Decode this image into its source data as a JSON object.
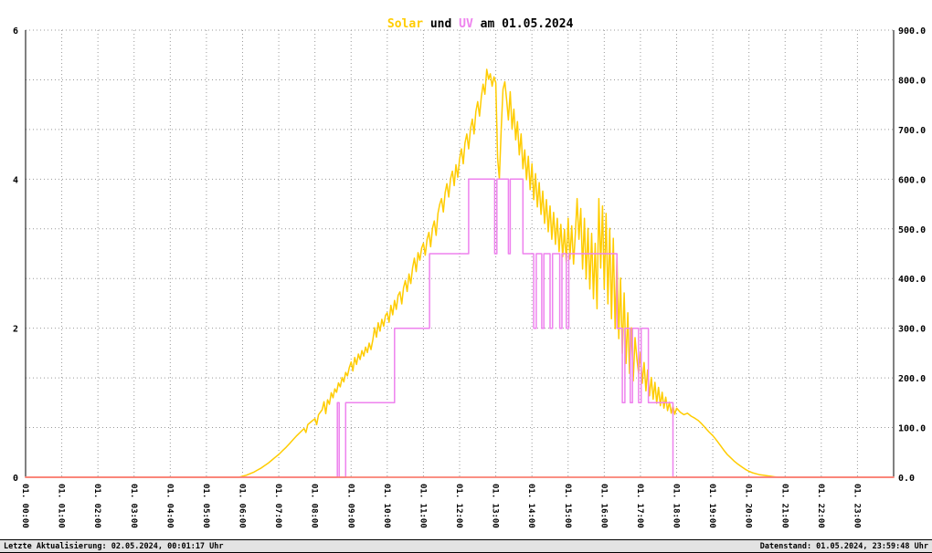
{
  "title": {
    "solar": "Solar",
    "und": " und ",
    "uv": "UV",
    "date": " am 01.05.2024"
  },
  "footer": {
    "left": "Letzte Aktualisierung: 02.05.2024, 00:01:17 Uhr",
    "right": "Datenstand: 01.05.2024, 23:59:48 Uhr"
  },
  "chart_data": {
    "type": "line",
    "title": "Solar und UV am 01.05.2024",
    "grid": true,
    "xlim": [
      0,
      24
    ],
    "x_tick_labels": [
      "01. 00:00",
      "01. 01:00",
      "01. 02:00",
      "01. 03:00",
      "01. 04:00",
      "01. 05:00",
      "01. 06:00",
      "01. 07:00",
      "01. 08:00",
      "01. 09:00",
      "01. 10:00",
      "01. 11:00",
      "01. 12:00",
      "01. 13:00",
      "01. 14:00",
      "01. 15:00",
      "01. 16:00",
      "01. 17:00",
      "01. 18:00",
      "01. 19:00",
      "01. 20:00",
      "01. 21:00",
      "01. 22:00",
      "01. 23:00"
    ],
    "left_axis": {
      "ylim": [
        0,
        6
      ],
      "tick_labels": [
        "6",
        "4",
        "2",
        "0"
      ]
    },
    "right_axis": {
      "ylim": [
        0,
        900
      ],
      "tick_labels": [
        "900.0",
        "800.0",
        "700.0",
        "600.0",
        "500.0",
        "400.0",
        "300.0",
        "200.0",
        "100.0",
        "0.0"
      ]
    },
    "colors": {
      "solar": "#FFCC00",
      "uv": "#EE82EE",
      "baseline": "#FA8072"
    },
    "series": [
      {
        "name": "Solar",
        "axis": "right",
        "type": "line",
        "color": "#FFCC00",
        "points": [
          [
            0,
            0
          ],
          [
            1,
            0
          ],
          [
            2,
            0
          ],
          [
            3,
            0
          ],
          [
            4,
            0
          ],
          [
            5,
            0
          ],
          [
            5.9,
            0
          ],
          [
            6,
            2
          ],
          [
            6.1,
            4
          ],
          [
            6.2,
            7
          ],
          [
            6.3,
            10
          ],
          [
            6.4,
            14
          ],
          [
            6.5,
            18
          ],
          [
            6.6,
            23
          ],
          [
            6.7,
            28
          ],
          [
            6.8,
            34
          ],
          [
            6.9,
            40
          ],
          [
            7,
            46
          ],
          [
            7.1,
            53
          ],
          [
            7.2,
            60
          ],
          [
            7.3,
            68
          ],
          [
            7.4,
            76
          ],
          [
            7.5,
            84
          ],
          [
            7.6,
            91
          ],
          [
            7.7,
            98
          ],
          [
            7.75,
            90
          ],
          [
            7.8,
            106
          ],
          [
            7.9,
            112
          ],
          [
            8,
            118
          ],
          [
            8.05,
            106
          ],
          [
            8.1,
            126
          ],
          [
            8.2,
            136
          ],
          [
            8.25,
            152
          ],
          [
            8.3,
            128
          ],
          [
            8.35,
            156
          ],
          [
            8.4,
            147
          ],
          [
            8.45,
            170
          ],
          [
            8.5,
            160
          ],
          [
            8.55,
            178
          ],
          [
            8.6,
            171
          ],
          [
            8.65,
            190
          ],
          [
            8.7,
            182
          ],
          [
            8.75,
            201
          ],
          [
            8.8,
            192
          ],
          [
            8.85,
            211
          ],
          [
            8.9,
            204
          ],
          [
            8.95,
            221
          ],
          [
            9,
            232
          ],
          [
            9.05,
            214
          ],
          [
            9.1,
            241
          ],
          [
            9.15,
            227
          ],
          [
            9.2,
            248
          ],
          [
            9.25,
            237
          ],
          [
            9.3,
            255
          ],
          [
            9.35,
            244
          ],
          [
            9.4,
            262
          ],
          [
            9.45,
            251
          ],
          [
            9.5,
            270
          ],
          [
            9.55,
            257
          ],
          [
            9.6,
            276
          ],
          [
            9.65,
            301
          ],
          [
            9.7,
            282
          ],
          [
            9.75,
            311
          ],
          [
            9.8,
            294
          ],
          [
            9.85,
            318
          ],
          [
            9.9,
            304
          ],
          [
            9.95,
            326
          ],
          [
            10,
            331
          ],
          [
            10.05,
            312
          ],
          [
            10.1,
            346
          ],
          [
            10.15,
            327
          ],
          [
            10.2,
            356
          ],
          [
            10.25,
            338
          ],
          [
            10.3,
            366
          ],
          [
            10.35,
            373
          ],
          [
            10.4,
            349
          ],
          [
            10.45,
            381
          ],
          [
            10.5,
            396
          ],
          [
            10.55,
            374
          ],
          [
            10.6,
            409
          ],
          [
            10.65,
            390
          ],
          [
            10.7,
            421
          ],
          [
            10.75,
            441
          ],
          [
            10.8,
            414
          ],
          [
            10.85,
            452
          ],
          [
            10.9,
            437
          ],
          [
            10.95,
            461
          ],
          [
            11,
            471
          ],
          [
            11.05,
            447
          ],
          [
            11.1,
            479
          ],
          [
            11.15,
            493
          ],
          [
            11.2,
            464
          ],
          [
            11.25,
            501
          ],
          [
            11.3,
            516
          ],
          [
            11.35,
            487
          ],
          [
            11.4,
            531
          ],
          [
            11.45,
            549
          ],
          [
            11.5,
            561
          ],
          [
            11.55,
            534
          ],
          [
            11.6,
            573
          ],
          [
            11.65,
            591
          ],
          [
            11.7,
            564
          ],
          [
            11.75,
            601
          ],
          [
            11.8,
            616
          ],
          [
            11.85,
            587
          ],
          [
            11.9,
            629
          ],
          [
            11.95,
            604
          ],
          [
            12,
            641
          ],
          [
            12.05,
            661
          ],
          [
            12.1,
            631
          ],
          [
            12.15,
            673
          ],
          [
            12.2,
            691
          ],
          [
            12.25,
            661
          ],
          [
            12.3,
            701
          ],
          [
            12.35,
            721
          ],
          [
            12.4,
            691
          ],
          [
            12.45,
            736
          ],
          [
            12.5,
            756
          ],
          [
            12.55,
            727
          ],
          [
            12.6,
            766
          ],
          [
            12.65,
            791
          ],
          [
            12.7,
            771
          ],
          [
            12.75,
            821
          ],
          [
            12.8,
            801
          ],
          [
            12.85,
            812
          ],
          [
            12.9,
            787
          ],
          [
            12.95,
            806
          ],
          [
            13,
            794
          ],
          [
            13.05,
            642
          ],
          [
            13.1,
            601
          ],
          [
            13.15,
            699
          ],
          [
            13.2,
            781
          ],
          [
            13.25,
            796
          ],
          [
            13.3,
            759
          ],
          [
            13.35,
            719
          ],
          [
            13.4,
            776
          ],
          [
            13.45,
            701
          ],
          [
            13.5,
            741
          ],
          [
            13.55,
            679
          ],
          [
            13.6,
            716
          ],
          [
            13.65,
            649
          ],
          [
            13.7,
            691
          ],
          [
            13.75,
            621
          ],
          [
            13.8,
            659
          ],
          [
            13.85,
            599
          ],
          [
            13.9,
            646
          ],
          [
            13.95,
            579
          ],
          [
            14,
            631
          ],
          [
            14.05,
            559
          ],
          [
            14.1,
            611
          ],
          [
            14.15,
            544
          ],
          [
            14.2,
            593
          ],
          [
            14.25,
            529
          ],
          [
            14.3,
            576
          ],
          [
            14.35,
            511
          ],
          [
            14.4,
            559
          ],
          [
            14.45,
            494
          ],
          [
            14.5,
            546
          ],
          [
            14.55,
            479
          ],
          [
            14.6,
            533
          ],
          [
            14.65,
            469
          ],
          [
            14.7,
            521
          ],
          [
            14.75,
            454
          ],
          [
            14.8,
            509
          ],
          [
            14.85,
            444
          ],
          [
            14.9,
            499
          ],
          [
            14.95,
            431
          ],
          [
            15,
            521
          ],
          [
            15.05,
            439
          ],
          [
            15.1,
            506
          ],
          [
            15.15,
            429
          ],
          [
            15.2,
            491
          ],
          [
            15.25,
            561
          ],
          [
            15.3,
            479
          ],
          [
            15.35,
            541
          ],
          [
            15.4,
            419
          ],
          [
            15.45,
            521
          ],
          [
            15.5,
            399
          ],
          [
            15.55,
            501
          ],
          [
            15.6,
            379
          ],
          [
            15.65,
            491
          ],
          [
            15.7,
            359
          ],
          [
            15.75,
            471
          ],
          [
            15.8,
            339
          ],
          [
            15.85,
            561
          ],
          [
            15.9,
            421
          ],
          [
            15.95,
            546
          ],
          [
            16,
            379
          ],
          [
            16.05,
            531
          ],
          [
            16.1,
            349
          ],
          [
            16.15,
            501
          ],
          [
            16.2,
            319
          ],
          [
            16.25,
            481
          ],
          [
            16.3,
            299
          ],
          [
            16.35,
            441
          ],
          [
            16.4,
            279
          ],
          [
            16.45,
            401
          ],
          [
            16.5,
            249
          ],
          [
            16.55,
            371
          ],
          [
            16.6,
            229
          ],
          [
            16.65,
            331
          ],
          [
            16.7,
            209
          ],
          [
            16.75,
            301
          ],
          [
            16.8,
            194
          ],
          [
            16.85,
            281
          ],
          [
            16.9,
            239
          ],
          [
            16.95,
            209
          ],
          [
            17,
            251
          ],
          [
            17.05,
            189
          ],
          [
            17.1,
            231
          ],
          [
            17.15,
            174
          ],
          [
            17.2,
            216
          ],
          [
            17.25,
            164
          ],
          [
            17.3,
            201
          ],
          [
            17.35,
            157
          ],
          [
            17.4,
            191
          ],
          [
            17.45,
            149
          ],
          [
            17.5,
            181
          ],
          [
            17.55,
            144
          ],
          [
            17.6,
            171
          ],
          [
            17.65,
            139
          ],
          [
            17.7,
            161
          ],
          [
            17.75,
            134
          ],
          [
            17.8,
            151
          ],
          [
            17.85,
            129
          ],
          [
            17.9,
            143
          ],
          [
            17.95,
            127
          ],
          [
            18,
            139
          ],
          [
            18.1,
            131
          ],
          [
            18.2,
            126
          ],
          [
            18.3,
            129
          ],
          [
            18.4,
            123
          ],
          [
            18.5,
            119
          ],
          [
            18.6,
            114
          ],
          [
            18.7,
            107
          ],
          [
            18.8,
            99
          ],
          [
            18.9,
            91
          ],
          [
            19,
            84
          ],
          [
            19.1,
            75
          ],
          [
            19.2,
            65
          ],
          [
            19.3,
            55
          ],
          [
            19.4,
            46
          ],
          [
            19.5,
            39
          ],
          [
            19.6,
            32
          ],
          [
            19.7,
            26
          ],
          [
            19.8,
            21
          ],
          [
            19.9,
            16
          ],
          [
            20,
            12
          ],
          [
            20.1,
            9
          ],
          [
            20.2,
            7
          ],
          [
            20.3,
            5
          ],
          [
            20.4,
            4
          ],
          [
            20.5,
            3
          ],
          [
            20.6,
            2
          ],
          [
            20.7,
            1
          ],
          [
            20.8,
            0
          ],
          [
            21,
            0
          ],
          [
            22,
            0
          ],
          [
            23,
            0
          ],
          [
            24,
            0
          ]
        ]
      },
      {
        "name": "UV",
        "axis": "left",
        "type": "step",
        "color": "#EE82EE",
        "points": [
          [
            0,
            0
          ],
          [
            8.62,
            1
          ],
          [
            8.67,
            0
          ],
          [
            8.85,
            1
          ],
          [
            10.2,
            2
          ],
          [
            11.17,
            3
          ],
          [
            12.25,
            4
          ],
          [
            12.97,
            3
          ],
          [
            13.03,
            4
          ],
          [
            13.35,
            3
          ],
          [
            13.4,
            4
          ],
          [
            13.75,
            3
          ],
          [
            14.05,
            2
          ],
          [
            14.12,
            3
          ],
          [
            14.27,
            2
          ],
          [
            14.33,
            3
          ],
          [
            14.5,
            2
          ],
          [
            14.57,
            3
          ],
          [
            14.77,
            2
          ],
          [
            14.83,
            3
          ],
          [
            14.95,
            2
          ],
          [
            15.02,
            3
          ],
          [
            16.35,
            2
          ],
          [
            16.5,
            1
          ],
          [
            16.57,
            2
          ],
          [
            16.72,
            1
          ],
          [
            16.78,
            2
          ],
          [
            16.95,
            1
          ],
          [
            17.02,
            2
          ],
          [
            17.22,
            1
          ],
          [
            17.9,
            0
          ],
          [
            24,
            0
          ]
        ]
      },
      {
        "name": "Baseline",
        "axis": "right",
        "type": "line",
        "color": "#FA8072",
        "points": [
          [
            0,
            0
          ],
          [
            24,
            0
          ]
        ]
      }
    ]
  }
}
